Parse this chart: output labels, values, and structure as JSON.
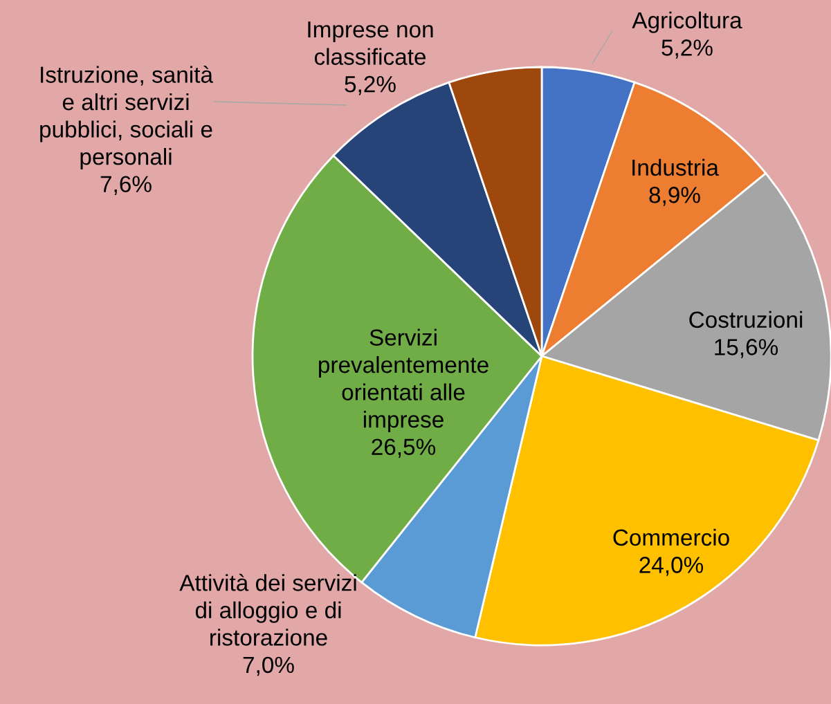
{
  "chart_data": {
    "type": "pie",
    "categories": [
      "Agricoltura",
      "Industria",
      "Costruzioni",
      "Commercio",
      "Attività dei servizi\ndi alloggio e di\nristorazione",
      "Servizi\nprevalentemente\norientati alle\nimprese",
      "Istruzione, sanità\ne altri servizi\npubblici, sociali e\npersonali",
      "Imprese non\nclassificate"
    ],
    "values": [
      5.2,
      8.9,
      15.6,
      24.0,
      7.0,
      26.5,
      7.6,
      5.2
    ],
    "colors": [
      "#4472c4",
      "#ed7d31",
      "#a5a5a5",
      "#ffc000",
      "#5b9bd5",
      "#70ad47",
      "#264478",
      "#9e480e"
    ],
    "value_labels": [
      "5,2%",
      "8,9%",
      "15,6%",
      "24,0%",
      "7,0%",
      "26,5%",
      "7,6%",
      "5,2%"
    ]
  }
}
